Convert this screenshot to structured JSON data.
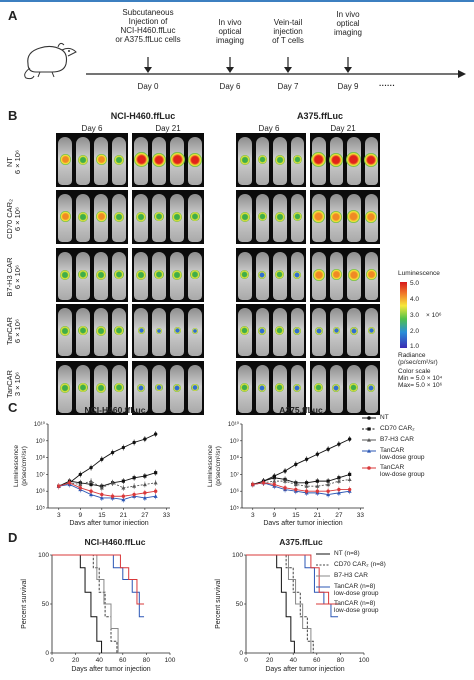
{
  "panelA": {
    "letter": "A",
    "events": [
      {
        "label": "Subcutaneous\nInjection of\nNCI-H460.ffLuc\nor A375.ffLuc cells",
        "day": "Day 0"
      },
      {
        "label": "In vivo\noptical\nimaging",
        "day": "Day 6"
      },
      {
        "label": "Vein-tail\ninjection\nof T cells",
        "day": "Day 7"
      },
      {
        "label": "In vivo\noptical\nimaging",
        "day": "Day 9"
      }
    ],
    "ellipsis": "······"
  },
  "panelB": {
    "letter": "B",
    "left_title": "NCI-H460.ffLuc",
    "right_title": "A375.ffLuc",
    "day_labels": [
      "Day 6",
      "Day 21",
      "Day 6",
      "Day 21"
    ],
    "rows": [
      {
        "group": "NT",
        "dose": "6 × 10⁶"
      },
      {
        "group": "CD70 CAR₂",
        "dose": "6 × 10⁶"
      },
      {
        "group": "B7-H3 CAR",
        "dose": "6 × 10⁶"
      },
      {
        "group": "TanCAR",
        "dose": "6 × 10⁶"
      },
      {
        "group": "TanCAR",
        "dose": "3 × 10⁶"
      }
    ],
    "scale": {
      "title": "Luminescence",
      "ticks": [
        "5.0",
        "4.0",
        "3.0",
        "2.0",
        "1.0"
      ],
      "exp": "× 10⁶",
      "radiance": "Radiance\n(p/sec/cm²/sr)",
      "color_scale": "Color scale\nMin = 5.0 × 10⁴\nMax= 5.0 × 10⁶"
    }
  },
  "panelC": {
    "letter": "C",
    "left_title": "NCI-H460.ffLuc",
    "right_title": "A375.ffLuc",
    "ylabel": "Luminescence\n(p/sec/cm²/sr)",
    "xlabel": "Days after tumor injection",
    "legend": [
      "NT",
      "CD70 CAR₂",
      "B7-H3 CAR",
      "TanCAR\nlow-dose group",
      "TanCAR\nlow-dose group"
    ]
  },
  "panelD": {
    "letter": "D",
    "left_title": "NCI-H460.ffLuc",
    "right_title": "A375.ffLuc",
    "ylabel": "Percent survival",
    "xlabel": "Days after tumor injection",
    "legend": [
      "NT (n=8)",
      "CD70 CAR₂ (n=8)",
      "B7-H3 CAR",
      "TanCAR (n=8)\nlow-dose group",
      "TanCAR (n=8)\nlow-dose group"
    ]
  },
  "chart_data": [
    {
      "type": "line",
      "title": "NCI-H460.ffLuc",
      "xlabel": "Days after tumor injection",
      "ylabel": "Luminescence (p/sec/cm²/sr)",
      "x": [
        3,
        6,
        9,
        12,
        15,
        18,
        21,
        24,
        27,
        30
      ],
      "xticks": [
        3,
        9,
        15,
        21,
        27,
        33
      ],
      "ylim_log10": [
        5,
        10
      ],
      "yticks": [
        "10⁵",
        "10⁶",
        "10⁷",
        "10⁸",
        "10⁹",
        "10¹⁰"
      ],
      "series": [
        {
          "name": "NT",
          "color": "#111111",
          "log10": [
            6.3,
            6.5,
            7.0,
            7.4,
            7.9,
            8.3,
            8.6,
            8.9,
            9.1,
            9.4
          ]
        },
        {
          "name": "CD70 CAR₂",
          "color": "#111111",
          "log10": [
            6.3,
            6.6,
            6.5,
            6.4,
            6.3,
            6.5,
            6.6,
            6.8,
            6.9,
            7.1
          ]
        },
        {
          "name": "B7-H3 CAR",
          "color": "#555555",
          "log10": [
            6.3,
            6.5,
            6.4,
            6.6,
            6.2,
            6.5,
            6.2,
            6.3,
            6.4,
            6.5
          ]
        },
        {
          "name": "TanCAR",
          "color": "#2b57b5",
          "log10": [
            6.3,
            6.4,
            6.1,
            5.8,
            5.6,
            5.6,
            5.5,
            5.7,
            5.6,
            5.7
          ]
        },
        {
          "name": "TanCAR low-dose group",
          "color": "#d9383a",
          "log10": [
            6.3,
            6.5,
            6.2,
            6.0,
            5.8,
            5.7,
            5.7,
            5.8,
            5.9,
            6.0
          ]
        }
      ]
    },
    {
      "type": "line",
      "title": "A375.ffLuc",
      "xlabel": "Days after tumor injection",
      "ylabel": "Luminescence (p/sec/cm²/sr)",
      "x": [
        3,
        6,
        9,
        12,
        15,
        18,
        21,
        24,
        27,
        30
      ],
      "xticks": [
        3,
        9,
        15,
        21,
        27,
        33
      ],
      "ylim_log10": [
        5,
        10
      ],
      "yticks": [
        "10⁵",
        "10⁶",
        "10⁷",
        "10⁸",
        "10⁹",
        "10¹⁰"
      ],
      "series": [
        {
          "name": "NT",
          "color": "#111111",
          "log10": [
            6.4,
            6.6,
            6.9,
            7.2,
            7.6,
            7.9,
            8.2,
            8.5,
            8.8,
            9.1
          ]
        },
        {
          "name": "CD70 CAR₂",
          "color": "#111111",
          "log10": [
            6.4,
            6.6,
            6.8,
            6.7,
            6.5,
            6.5,
            6.6,
            6.6,
            6.8,
            7.0
          ]
        },
        {
          "name": "B7-H3 CAR",
          "color": "#555555",
          "log10": [
            6.4,
            6.5,
            6.6,
            6.6,
            6.4,
            6.3,
            6.3,
            6.4,
            6.6,
            6.7
          ]
        },
        {
          "name": "TanCAR",
          "color": "#2b57b5",
          "log10": [
            6.4,
            6.5,
            6.3,
            6.1,
            6.0,
            5.9,
            5.9,
            5.8,
            5.9,
            6.0
          ]
        },
        {
          "name": "TanCAR low-dose group",
          "color": "#d9383a",
          "log10": [
            6.4,
            6.5,
            6.4,
            6.2,
            6.1,
            6.0,
            6.0,
            6.0,
            6.1,
            6.1
          ]
        }
      ]
    },
    {
      "type": "line",
      "title": "NCI-H460.ffLuc",
      "xlabel": "Days after tumor injection",
      "ylabel": "Percent survival",
      "xlim": [
        0,
        100
      ],
      "ylim": [
        0,
        100
      ],
      "xticks": [
        0,
        20,
        40,
        60,
        80,
        100
      ],
      "yticks": [
        0,
        50,
        100
      ],
      "series": [
        {
          "name": "NT (n=8)",
          "color": "#111111",
          "steps": [
            [
              0,
              100
            ],
            [
              24,
              100
            ],
            [
              24,
              87
            ],
            [
              28,
              87
            ],
            [
              28,
              62
            ],
            [
              33,
              62
            ],
            [
              33,
              37
            ],
            [
              38,
              37
            ],
            [
              38,
              12
            ],
            [
              42,
              12
            ],
            [
              42,
              0
            ]
          ]
        },
        {
          "name": "CD70 CAR₂ (n=8)",
          "color": "#444444",
          "steps": [
            [
              0,
              100
            ],
            [
              35,
              100
            ],
            [
              35,
              87
            ],
            [
              40,
              87
            ],
            [
              40,
              62
            ],
            [
              45,
              62
            ],
            [
              45,
              37
            ],
            [
              50,
              37
            ],
            [
              50,
              12
            ],
            [
              55,
              12
            ],
            [
              55,
              0
            ]
          ]
        },
        {
          "name": "B7-H3 CAR",
          "color": "#888888",
          "steps": [
            [
              0,
              100
            ],
            [
              38,
              100
            ],
            [
              38,
              75
            ],
            [
              44,
              75
            ],
            [
              44,
              50
            ],
            [
              50,
              50
            ],
            [
              50,
              25
            ],
            [
              56,
              25
            ],
            [
              56,
              0
            ]
          ]
        },
        {
          "name": "TanCAR (n=8)",
          "color": "#2b57b5",
          "steps": [
            [
              0,
              100
            ],
            [
              52,
              100
            ],
            [
              52,
              87
            ],
            [
              60,
              87
            ],
            [
              60,
              75
            ],
            [
              68,
              75
            ],
            [
              68,
              62
            ],
            [
              74,
              62
            ],
            [
              74,
              37
            ],
            [
              78,
              37
            ]
          ]
        },
        {
          "name": "TanCAR (n=8) low-dose",
          "color": "#d9383a",
          "steps": [
            [
              0,
              100
            ],
            [
              58,
              100
            ],
            [
              58,
              87
            ],
            [
              65,
              87
            ],
            [
              65,
              75
            ],
            [
              72,
              75
            ],
            [
              72,
              50
            ],
            [
              78,
              50
            ]
          ]
        }
      ]
    },
    {
      "type": "line",
      "title": "A375.ffLuc",
      "xlabel": "Days after tumor injection",
      "ylabel": "Percent survival",
      "xlim": [
        0,
        100
      ],
      "ylim": [
        0,
        100
      ],
      "xticks": [
        0,
        20,
        40,
        60,
        80,
        100
      ],
      "yticks": [
        0,
        50,
        100
      ],
      "series": [
        {
          "name": "NT (n=8)",
          "color": "#111111",
          "steps": [
            [
              0,
              100
            ],
            [
              26,
              100
            ],
            [
              26,
              87
            ],
            [
              30,
              87
            ],
            [
              30,
              62
            ],
            [
              34,
              62
            ],
            [
              34,
              37
            ],
            [
              38,
              37
            ],
            [
              38,
              12
            ],
            [
              41,
              12
            ],
            [
              41,
              0
            ]
          ]
        },
        {
          "name": "CD70 CAR₂ (n=8)",
          "color": "#444444",
          "steps": [
            [
              0,
              100
            ],
            [
              34,
              100
            ],
            [
              34,
              87
            ],
            [
              40,
              87
            ],
            [
              40,
              62
            ],
            [
              46,
              62
            ],
            [
              46,
              37
            ],
            [
              52,
              37
            ],
            [
              52,
              12
            ],
            [
              57,
              12
            ],
            [
              57,
              0
            ]
          ]
        },
        {
          "name": "B7-H3 CAR",
          "color": "#888888",
          "steps": [
            [
              0,
              100
            ],
            [
              36,
              100
            ],
            [
              36,
              75
            ],
            [
              42,
              75
            ],
            [
              42,
              50
            ],
            [
              48,
              50
            ],
            [
              48,
              25
            ],
            [
              55,
              25
            ],
            [
              55,
              0
            ]
          ]
        },
        {
          "name": "TanCAR (n=8)",
          "color": "#2b57b5",
          "steps": [
            [
              0,
              100
            ],
            [
              50,
              100
            ],
            [
              50,
              87
            ],
            [
              58,
              87
            ],
            [
              58,
              62
            ],
            [
              66,
              62
            ],
            [
              66,
              50
            ],
            [
              72,
              50
            ],
            [
              72,
              37
            ],
            [
              78,
              37
            ]
          ]
        },
        {
          "name": "TanCAR (n=8) low-dose",
          "color": "#d9383a",
          "steps": [
            [
              0,
              100
            ],
            [
              55,
              100
            ],
            [
              55,
              87
            ],
            [
              62,
              87
            ],
            [
              62,
              62
            ],
            [
              70,
              62
            ],
            [
              70,
              50
            ],
            [
              78,
              50
            ]
          ]
        }
      ]
    }
  ]
}
